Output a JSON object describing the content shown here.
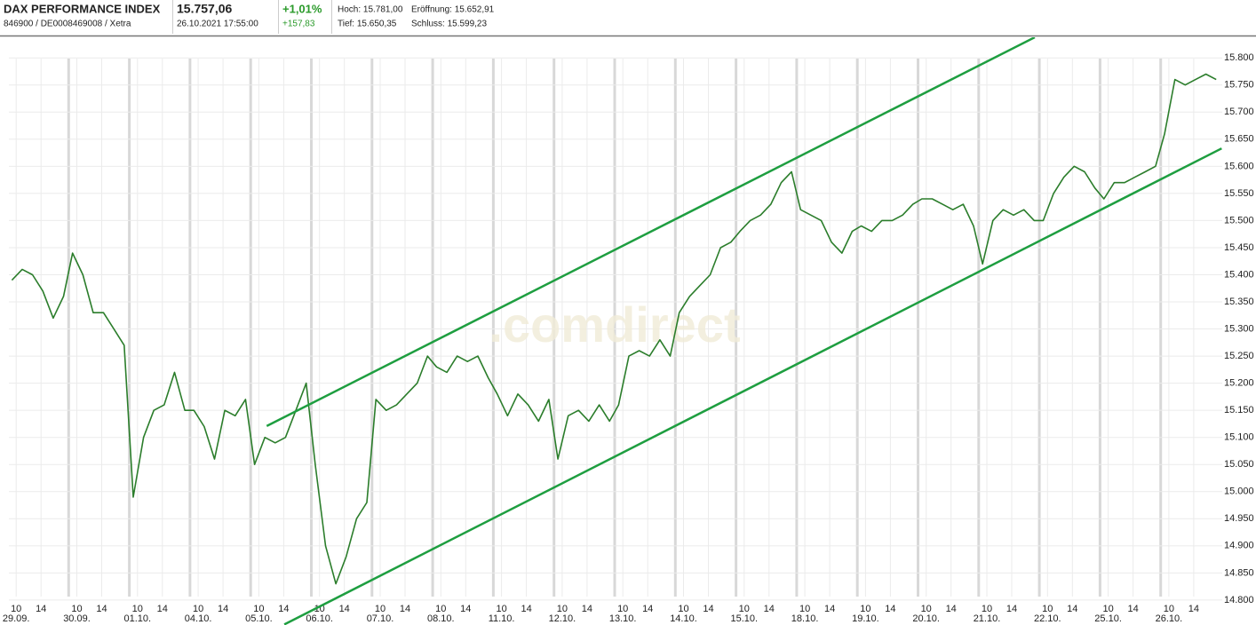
{
  "header": {
    "name": "DAX PERFORMANCE INDEX",
    "ids": "846900 / DE0008469008 / Xetra",
    "price": "15.757,06",
    "datetime": "26.10.2021 17:55:00",
    "change_pct": "+1,01%",
    "change_abs": "+157,83",
    "high": "Hoch: 15.781,00",
    "open": "Eröffnung: 15.652,91",
    "low": "Tief: 15.650,35",
    "close": "Schluss: 15.599,23"
  },
  "chart_data": {
    "type": "line",
    "watermark": ".comdirect",
    "xlim": [
      0,
      20
    ],
    "ylim": [
      14754,
      15838
    ],
    "yticks": [
      {
        "value": 14800,
        "label": "14.800"
      },
      {
        "value": 14850,
        "label": "14.850"
      },
      {
        "value": 14900,
        "label": "14.900"
      },
      {
        "value": 14950,
        "label": "14.950"
      },
      {
        "value": 15000,
        "label": "15.000"
      },
      {
        "value": 15050,
        "label": "15.050"
      },
      {
        "value": 15100,
        "label": "15.100"
      },
      {
        "value": 15150,
        "label": "15.150"
      },
      {
        "value": 15200,
        "label": "15.200"
      },
      {
        "value": 15250,
        "label": "15.250"
      },
      {
        "value": 15300,
        "label": "15.300"
      },
      {
        "value": 15350,
        "label": "15.350"
      },
      {
        "value": 15400,
        "label": "15.400"
      },
      {
        "value": 15450,
        "label": "15.450"
      },
      {
        "value": 15500,
        "label": "15.500"
      },
      {
        "value": 15550,
        "label": "15.550"
      },
      {
        "value": 15600,
        "label": "15.600"
      },
      {
        "value": 15650,
        "label": "15.650"
      },
      {
        "value": 15700,
        "label": "15.700"
      },
      {
        "value": 15750,
        "label": "15.750"
      },
      {
        "value": 15800,
        "label": "15.800"
      }
    ],
    "xticks": [
      {
        "value": 0.12,
        "label": "29.09."
      },
      {
        "value": 1.12,
        "label": "30.09."
      },
      {
        "value": 2.12,
        "label": "01.10."
      },
      {
        "value": 3.12,
        "label": "04.10."
      },
      {
        "value": 4.12,
        "label": "05.10."
      },
      {
        "value": 5.12,
        "label": "06.10."
      },
      {
        "value": 6.12,
        "label": "07.10."
      },
      {
        "value": 7.12,
        "label": "08.10."
      },
      {
        "value": 8.12,
        "label": "11.10."
      },
      {
        "value": 9.12,
        "label": "12.10."
      },
      {
        "value": 10.12,
        "label": "13.10."
      },
      {
        "value": 11.12,
        "label": "14.10."
      },
      {
        "value": 12.12,
        "label": "15.10."
      },
      {
        "value": 13.12,
        "label": "18.10."
      },
      {
        "value": 14.12,
        "label": "19.10."
      },
      {
        "value": 15.12,
        "label": "20.10."
      },
      {
        "value": 16.12,
        "label": "21.10."
      },
      {
        "value": 17.12,
        "label": "22.10."
      },
      {
        "value": 18.12,
        "label": "25.10."
      },
      {
        "value": 19.12,
        "label": "26.10."
      }
    ],
    "hour_ticks": [
      {
        "value": 0.12,
        "label": "10"
      },
      {
        "value": 0.53,
        "label": "14"
      },
      {
        "value": 1.12,
        "label": "10"
      },
      {
        "value": 1.53,
        "label": "14"
      },
      {
        "value": 2.12,
        "label": "10"
      },
      {
        "value": 2.53,
        "label": "14"
      },
      {
        "value": 3.12,
        "label": "10"
      },
      {
        "value": 3.53,
        "label": "14"
      },
      {
        "value": 4.12,
        "label": "10"
      },
      {
        "value": 4.53,
        "label": "14"
      },
      {
        "value": 5.12,
        "label": "10"
      },
      {
        "value": 5.53,
        "label": "14"
      },
      {
        "value": 6.12,
        "label": "10"
      },
      {
        "value": 6.53,
        "label": "14"
      },
      {
        "value": 7.12,
        "label": "10"
      },
      {
        "value": 7.53,
        "label": "14"
      },
      {
        "value": 8.12,
        "label": "10"
      },
      {
        "value": 8.53,
        "label": "14"
      },
      {
        "value": 9.12,
        "label": "10"
      },
      {
        "value": 9.53,
        "label": "14"
      },
      {
        "value": 10.12,
        "label": "10"
      },
      {
        "value": 10.53,
        "label": "14"
      },
      {
        "value": 11.12,
        "label": "10"
      },
      {
        "value": 11.53,
        "label": "14"
      },
      {
        "value": 12.12,
        "label": "10"
      },
      {
        "value": 12.53,
        "label": "14"
      },
      {
        "value": 13.12,
        "label": "10"
      },
      {
        "value": 13.53,
        "label": "14"
      },
      {
        "value": 14.12,
        "label": "10"
      },
      {
        "value": 14.53,
        "label": "14"
      },
      {
        "value": 15.12,
        "label": "10"
      },
      {
        "value": 15.53,
        "label": "14"
      },
      {
        "value": 16.12,
        "label": "10"
      },
      {
        "value": 16.53,
        "label": "14"
      },
      {
        "value": 17.12,
        "label": "10"
      },
      {
        "value": 17.53,
        "label": "14"
      },
      {
        "value": 18.12,
        "label": "10"
      },
      {
        "value": 18.53,
        "label": "14"
      },
      {
        "value": 19.12,
        "label": "10"
      },
      {
        "value": 19.53,
        "label": "14"
      }
    ],
    "grid": true,
    "series": [
      {
        "color": "#2b7d2b",
        "x": [
          0.05,
          0.22,
          0.39,
          0.56,
          0.73,
          0.9,
          1.05,
          1.22,
          1.39,
          1.56,
          1.73,
          1.9,
          2.05,
          2.22,
          2.39,
          2.56,
          2.73,
          2.9,
          3.05,
          3.22,
          3.39,
          3.56,
          3.73,
          3.9,
          4.05,
          4.22,
          4.39,
          4.56,
          4.73,
          4.9,
          5.05,
          5.22,
          5.39,
          5.56,
          5.73,
          5.9,
          6.05,
          6.22,
          6.39,
          6.56,
          6.73,
          6.9,
          7.05,
          7.22,
          7.39,
          7.56,
          7.73,
          7.9,
          8.05,
          8.22,
          8.39,
          8.56,
          8.73,
          8.9,
          9.05,
          9.22,
          9.39,
          9.56,
          9.73,
          9.9,
          10.05,
          10.22,
          10.39,
          10.56,
          10.73,
          10.9,
          11.05,
          11.22,
          11.39,
          11.56,
          11.73,
          11.9,
          12.05,
          12.22,
          12.39,
          12.56,
          12.73,
          12.9,
          13.05,
          13.22,
          13.39,
          13.56,
          13.73,
          13.9,
          14.05,
          14.22,
          14.39,
          14.56,
          14.73,
          14.9,
          15.05,
          15.22,
          15.39,
          15.56,
          15.73,
          15.9,
          16.05,
          16.22,
          16.39,
          16.56,
          16.73,
          16.9,
          17.05,
          17.22,
          17.39,
          17.56,
          17.73,
          17.9,
          18.05,
          18.22,
          18.39,
          18.56,
          18.73,
          18.9,
          19.05,
          19.22,
          19.39,
          19.56,
          19.73,
          19.9
        ],
        "values": [
          15390,
          15410,
          15400,
          15370,
          15320,
          15360,
          15440,
          15400,
          15330,
          15330,
          15300,
          15270,
          14990,
          15100,
          15150,
          15160,
          15220,
          15150,
          15150,
          15120,
          15060,
          15150,
          15140,
          15170,
          15050,
          15100,
          15090,
          15100,
          15150,
          15200,
          15050,
          14900,
          14830,
          14880,
          14950,
          14980,
          15170,
          15150,
          15160,
          15180,
          15200,
          15250,
          15230,
          15220,
          15250,
          15240,
          15250,
          15210,
          15180,
          15140,
          15180,
          15160,
          15130,
          15170,
          15060,
          15140,
          15150,
          15130,
          15160,
          15130,
          15160,
          15250,
          15260,
          15250,
          15280,
          15250,
          15330,
          15360,
          15380,
          15400,
          15450,
          15460,
          15480,
          15500,
          15510,
          15530,
          15570,
          15590,
          15520,
          15510,
          15500,
          15460,
          15440,
          15480,
          15490,
          15480,
          15500,
          15500,
          15510,
          15530,
          15540,
          15540,
          15530,
          15520,
          15530,
          15490,
          15420,
          15500,
          15520,
          15510,
          15520,
          15500,
          15500,
          15550,
          15580,
          15600,
          15590,
          15560,
          15540,
          15570,
          15570,
          15580,
          15590,
          15600,
          15660,
          15760,
          15750,
          15760,
          15770,
          15760
        ]
      }
    ],
    "trendlines": [
      {
        "color": "#1e9e40",
        "x": [
          4.25,
          16.91
        ],
        "values": [
          15121,
          15838
        ]
      },
      {
        "color": "#1e9e40",
        "x": [
          4.54,
          19.99
        ],
        "values": [
          14755,
          15633
        ]
      }
    ]
  }
}
